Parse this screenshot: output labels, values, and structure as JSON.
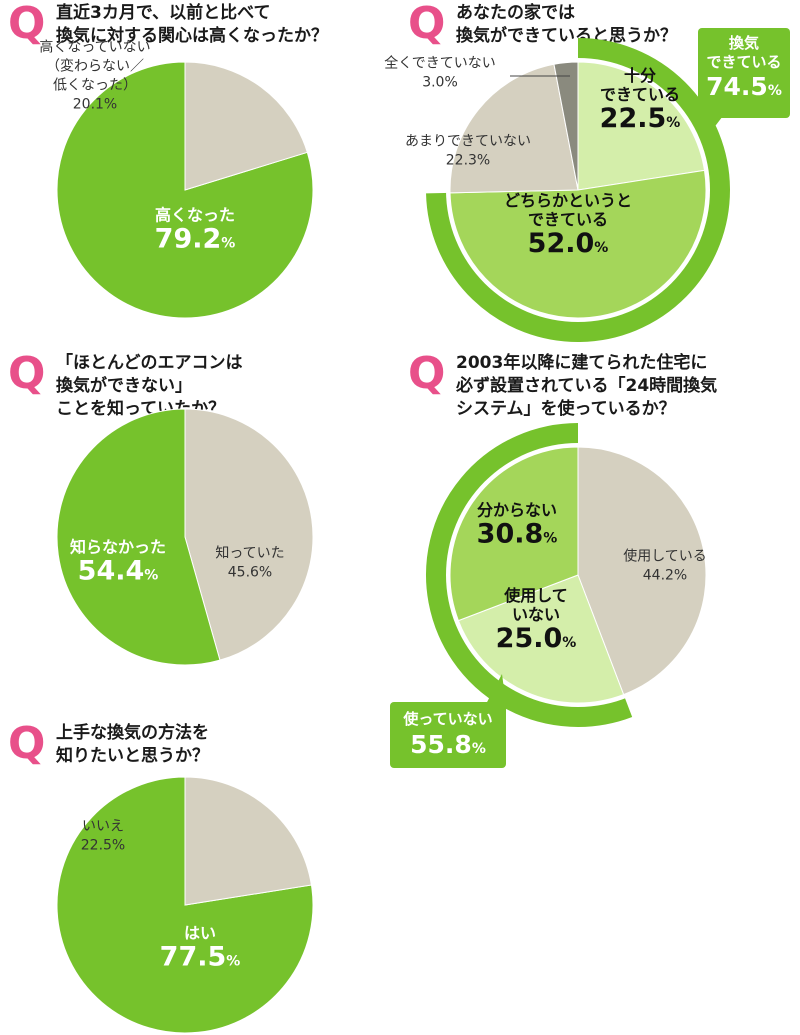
{
  "questions": {
    "q1": {
      "mark": "Q",
      "lines": [
        "直近3カ月で、以前と比べて",
        "換気に対する関心は高くなったか？"
      ]
    },
    "q2": {
      "mark": "Q",
      "lines": [
        "あなたの家では",
        "換気ができていると思うか？"
      ]
    },
    "q3": {
      "mark": "Q",
      "lines": [
        "「ほとんどのエアコンは",
        "換気ができない」",
        "ことを知っていたか？"
      ]
    },
    "q4": {
      "mark": "Q",
      "lines": [
        "2003年以降に建てられた住宅に",
        "必ず設置されている「24時間換気",
        "システム」を使っているか？"
      ]
    },
    "q5": {
      "mark": "Q",
      "lines": [
        "上手な換気の方法を",
        "知りたいと思うか？"
      ]
    }
  },
  "callouts": {
    "q2": {
      "lines": [
        "換気",
        "できている"
      ],
      "value": "74.5",
      "unit": "%"
    },
    "q4": {
      "lines": [
        "使っていない"
      ],
      "value": "55.8",
      "unit": "%"
    }
  },
  "colors": {
    "green": "#76c22c",
    "light_green": "#a4d65a",
    "pale_green": "#d4eeaa",
    "beige": "#d5d0c0",
    "dark_gray": "#8a8a7e",
    "question_mark": "#e8508a"
  },
  "chart_data": [
    {
      "id": "q1",
      "type": "pie",
      "slices": [
        {
          "label_lines": [
            "高くなった"
          ],
          "value": 79.2,
          "value_text": "79.2",
          "unit": "%",
          "color": "#76c22c",
          "style": "bold-white"
        },
        {
          "label_lines": [
            "高くなっていない",
            "（変わらない／",
            "低くなった）"
          ],
          "value": 20.1,
          "value_text": "20.1",
          "unit": "%",
          "color": "#d5d0c0",
          "style": "plain"
        }
      ]
    },
    {
      "id": "q2",
      "type": "pie",
      "slices": [
        {
          "label_lines": [
            "十分",
            "できている"
          ],
          "value": 22.5,
          "value_text": "22.5",
          "unit": "%",
          "color": "#d4eeaa",
          "style": "bold-dark"
        },
        {
          "label_lines": [
            "どちらかというと",
            "できている"
          ],
          "value": 52.0,
          "value_text": "52.0",
          "unit": "%",
          "color": "#a4d65a",
          "style": "bold-dark"
        },
        {
          "label_lines": [
            "あまりできていない"
          ],
          "value": 22.3,
          "value_text": "22.3",
          "unit": "%",
          "color": "#d5d0c0",
          "style": "plain"
        },
        {
          "label_lines": [
            "全くできていない"
          ],
          "value": 3.0,
          "value_text": "3.0",
          "unit": "%",
          "color": "#8a8a7e",
          "style": "plain"
        }
      ]
    },
    {
      "id": "q3",
      "type": "pie",
      "slices": [
        {
          "label_lines": [
            "知っていた"
          ],
          "value": 45.6,
          "value_text": "45.6",
          "unit": "%",
          "color": "#d5d0c0",
          "style": "plain"
        },
        {
          "label_lines": [
            "知らなかった"
          ],
          "value": 54.4,
          "value_text": "54.4",
          "unit": "%",
          "color": "#76c22c",
          "style": "bold-white"
        }
      ]
    },
    {
      "id": "q4",
      "type": "pie",
      "slices": [
        {
          "label_lines": [
            "使用している"
          ],
          "value": 44.2,
          "value_text": "44.2",
          "unit": "%",
          "color": "#d5d0c0",
          "style": "plain"
        },
        {
          "label_lines": [
            "使用して",
            "いない"
          ],
          "value": 25.0,
          "value_text": "25.0",
          "unit": "%",
          "color": "#d4eeaa",
          "style": "bold-dark"
        },
        {
          "label_lines": [
            "分からない"
          ],
          "value": 30.8,
          "value_text": "30.8",
          "unit": "%",
          "color": "#a4d65a",
          "style": "bold-dark"
        }
      ]
    },
    {
      "id": "q5",
      "type": "pie",
      "slices": [
        {
          "label_lines": [
            "はい"
          ],
          "value": 77.5,
          "value_text": "77.5",
          "unit": "%",
          "color": "#76c22c",
          "style": "bold-white"
        },
        {
          "label_lines": [
            "いいえ"
          ],
          "value": 22.5,
          "value_text": "22.5",
          "unit": "%",
          "color": "#d5d0c0",
          "style": "plain"
        }
      ]
    }
  ]
}
